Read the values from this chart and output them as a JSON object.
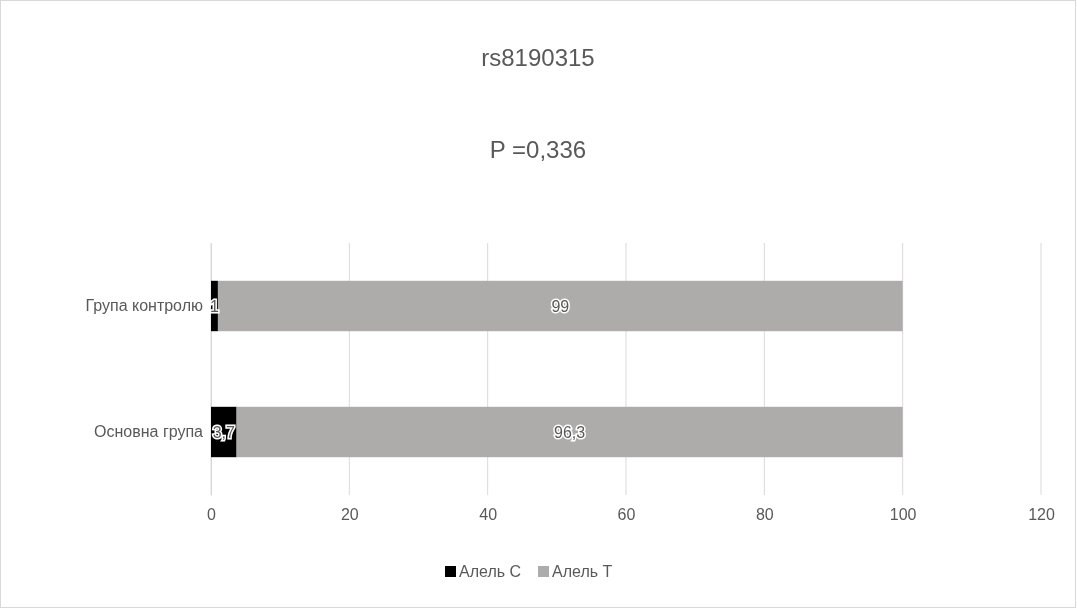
{
  "chart_data": {
    "type": "bar",
    "orientation": "horizontal",
    "stacked": true,
    "title": "rs8190315",
    "subtitle": "P =0,336",
    "categories": [
      "Група контролю",
      "Основна група"
    ],
    "series": [
      {
        "name": "Алель C",
        "color": "#000000",
        "values": [
          1,
          3.7
        ],
        "value_labels": [
          "1",
          "3,7"
        ]
      },
      {
        "name": "Алель T",
        "color": "#aeabab",
        "values": [
          99,
          96.3
        ],
        "value_labels": [
          "99",
          "96,3"
        ]
      }
    ],
    "xlim": [
      0,
      120
    ],
    "xticks": [
      0,
      20,
      40,
      60,
      80,
      100,
      120
    ],
    "grid": "x",
    "legend": "bottom"
  }
}
